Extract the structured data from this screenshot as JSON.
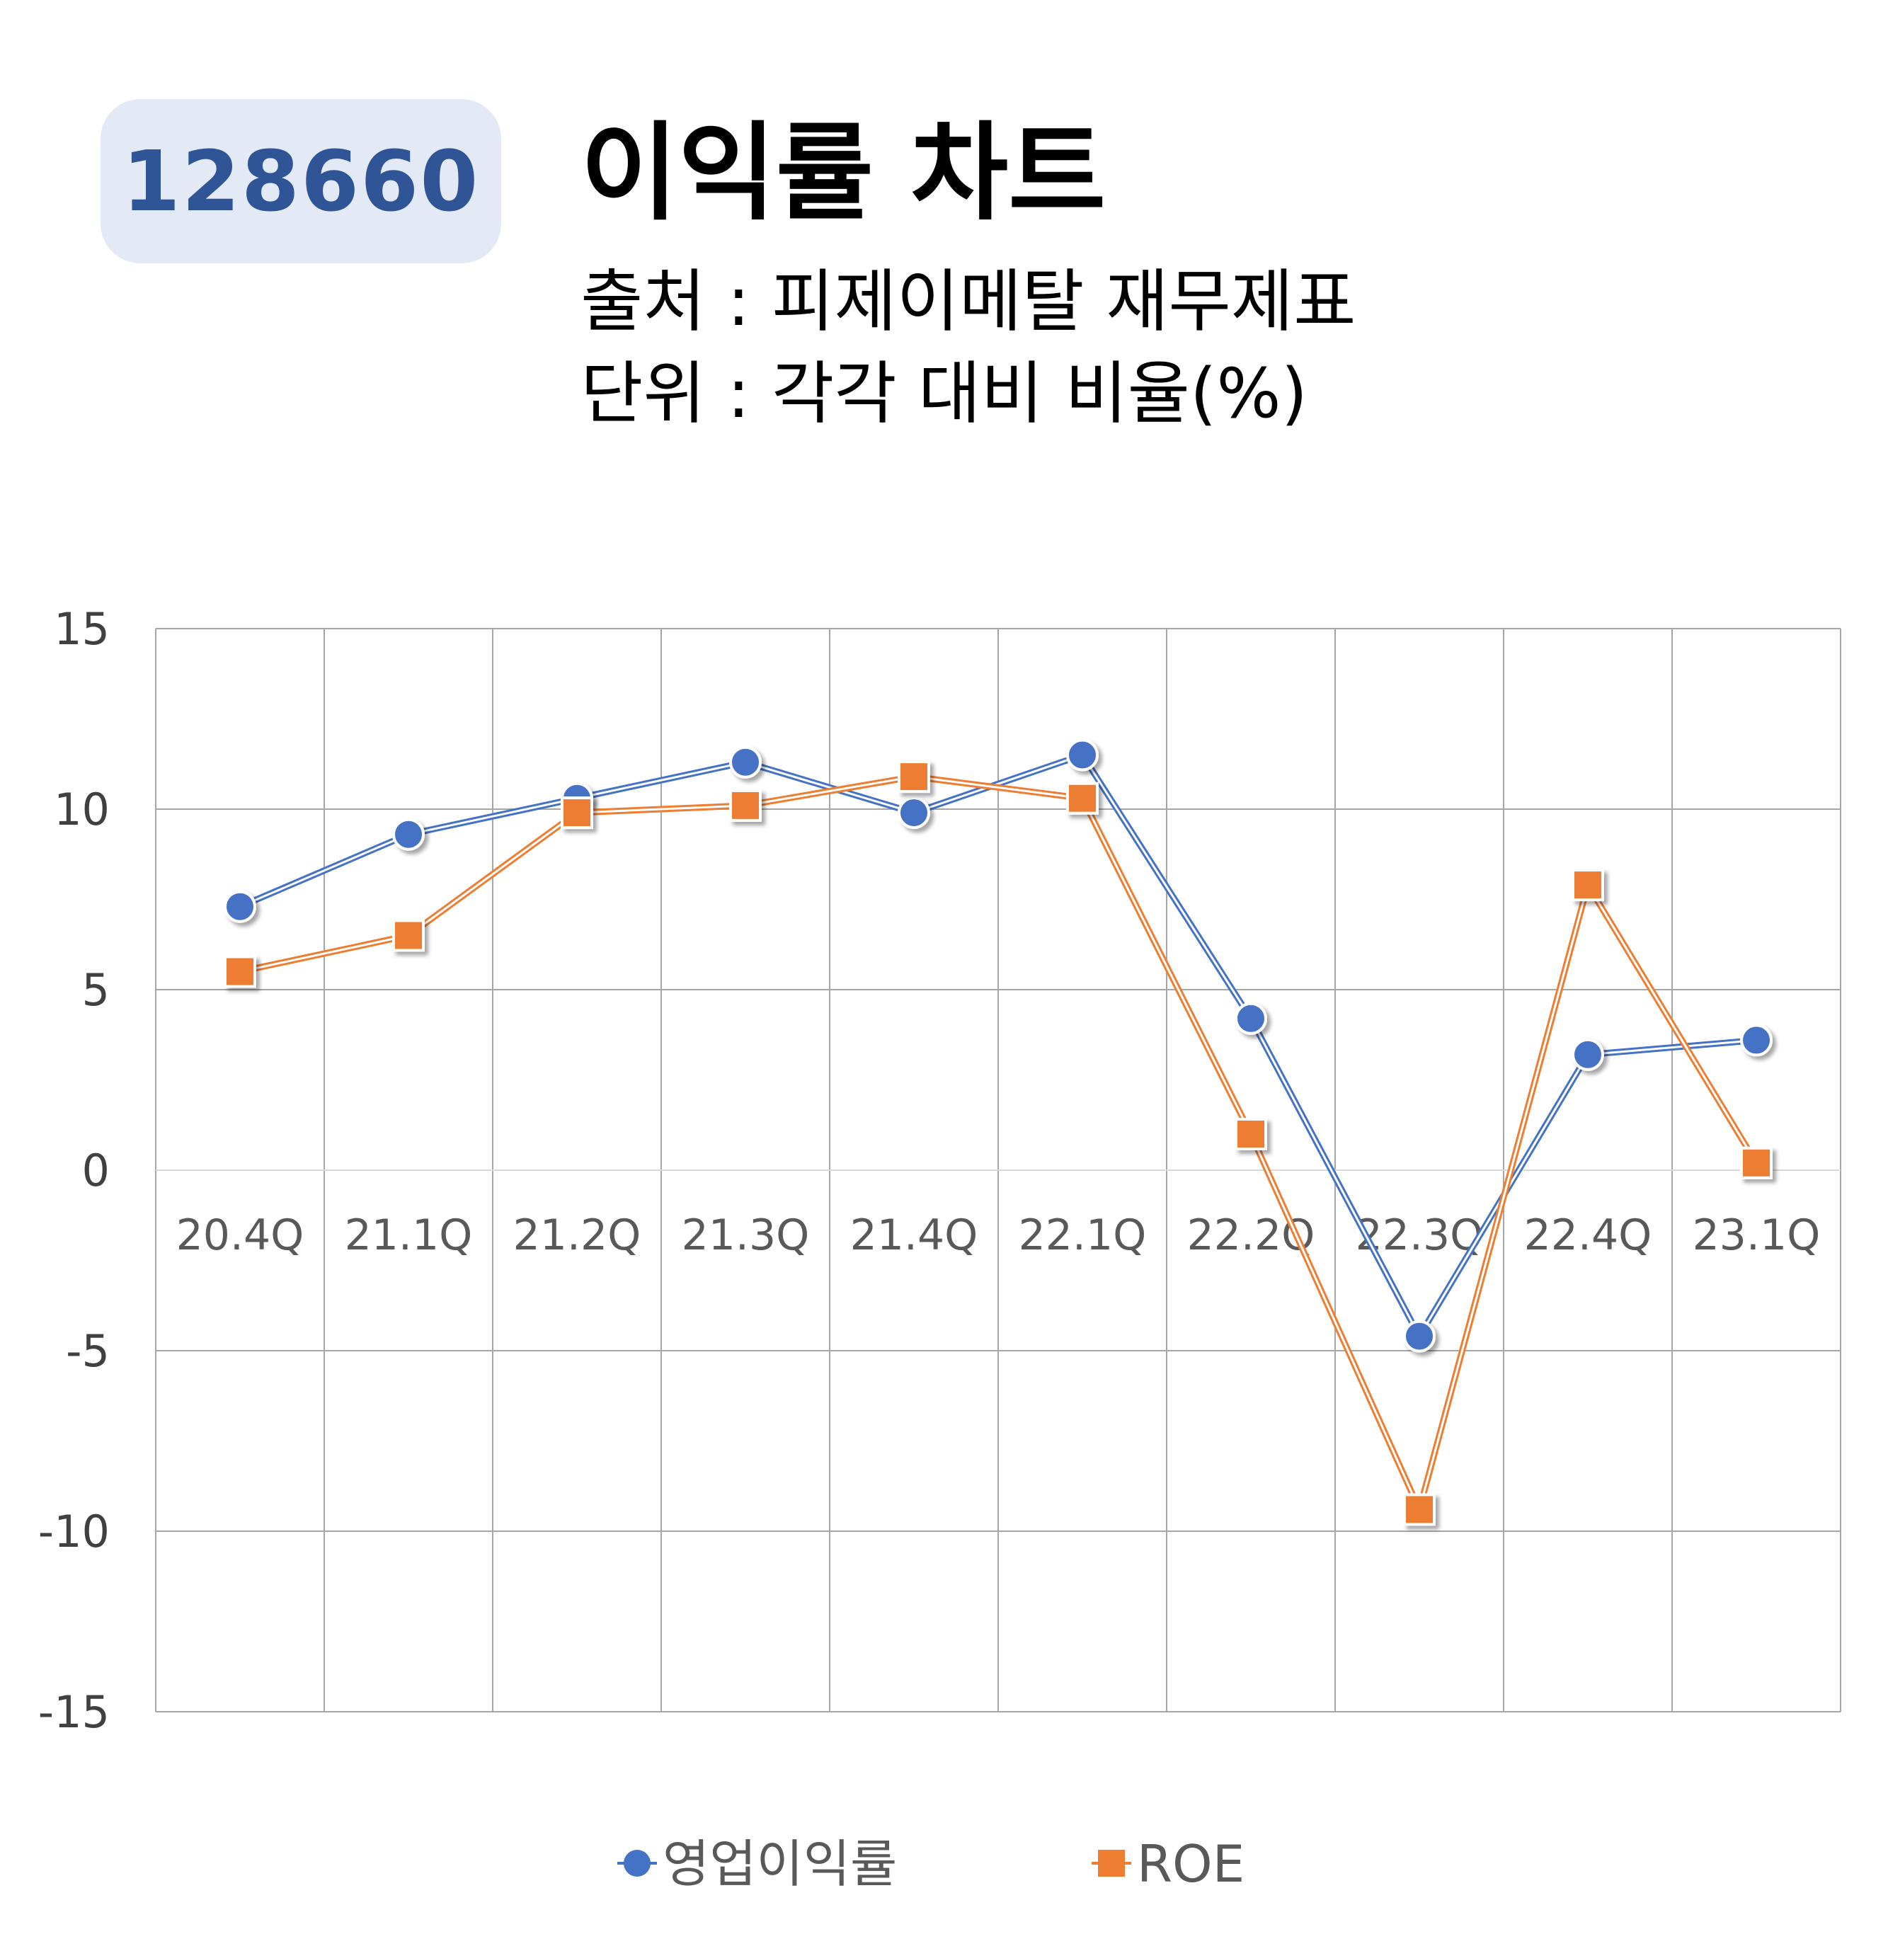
{
  "header": {
    "ticker": "128660",
    "title": "이익률 차트",
    "source": "출처 : 피제이메탈 재무제표",
    "unit": "단위 : 각각 대비 비율(%)"
  },
  "chart_data": {
    "type": "line",
    "title": "",
    "xlabel": "",
    "ylabel": "",
    "ylim": [
      -15,
      15
    ],
    "yticks": [
      15,
      10,
      5,
      0,
      -5,
      -10,
      -15
    ],
    "ytick_labels": [
      "15",
      "10",
      "5",
      "0",
      "-5",
      "-10",
      "-15"
    ],
    "categories": [
      "20.4Q",
      "21.1Q",
      "21.2Q",
      "21.3Q",
      "21.4Q",
      "22.1Q",
      "22.2Q",
      "22.3Q",
      "22.4Q",
      "23.1Q"
    ],
    "grid": true,
    "legend_position": "bottom",
    "series": [
      {
        "name": "영업이익률",
        "marker": "circle",
        "color": "#4472c4",
        "values": [
          7.3,
          9.3,
          10.3,
          11.3,
          9.9,
          11.5,
          4.2,
          -4.6,
          3.2,
          3.6
        ]
      },
      {
        "name": "ROE",
        "marker": "square",
        "color": "#ed7d31",
        "values": [
          5.5,
          6.5,
          9.9,
          10.1,
          10.9,
          10.3,
          1.0,
          -9.4,
          7.9,
          0.2
        ]
      }
    ]
  }
}
